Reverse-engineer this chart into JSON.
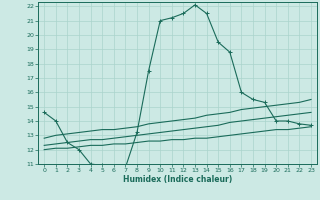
{
  "title": "",
  "xlabel": "Humidex (Indice chaleur)",
  "ylabel": "",
  "bg_color": "#cce9e4",
  "grid_color": "#aad4cc",
  "line_color": "#1a6b5a",
  "xlim": [
    -0.5,
    23.5
  ],
  "ylim": [
    11,
    22.3
  ],
  "yticks": [
    11,
    12,
    13,
    14,
    15,
    16,
    17,
    18,
    19,
    20,
    21,
    22
  ],
  "xticks": [
    0,
    1,
    2,
    3,
    4,
    5,
    6,
    7,
    8,
    9,
    10,
    11,
    12,
    13,
    14,
    15,
    16,
    17,
    18,
    19,
    20,
    21,
    22,
    23
  ],
  "curve1_x": [
    0,
    1,
    2,
    3,
    4,
    5,
    6,
    7,
    8,
    9,
    10,
    11,
    12,
    13,
    14,
    15,
    16,
    17,
    18,
    19,
    20,
    21,
    22,
    23
  ],
  "curve1_y": [
    14.6,
    14.0,
    12.5,
    12.0,
    11.0,
    10.9,
    10.75,
    10.75,
    13.2,
    17.5,
    21.0,
    21.2,
    21.5,
    22.1,
    21.5,
    19.5,
    18.8,
    16.0,
    15.5,
    15.3,
    14.0,
    14.0,
    13.8,
    13.7
  ],
  "curve2_x": [
    0,
    1,
    2,
    3,
    4,
    5,
    6,
    7,
    8,
    9,
    10,
    11,
    12,
    13,
    14,
    15,
    16,
    17,
    18,
    19,
    20,
    21,
    22,
    23
  ],
  "curve2_y": [
    12.8,
    13.0,
    13.1,
    13.2,
    13.3,
    13.4,
    13.4,
    13.5,
    13.6,
    13.8,
    13.9,
    14.0,
    14.1,
    14.2,
    14.4,
    14.5,
    14.6,
    14.8,
    14.9,
    15.0,
    15.1,
    15.2,
    15.3,
    15.5
  ],
  "curve3_x": [
    0,
    1,
    2,
    3,
    4,
    5,
    6,
    7,
    8,
    9,
    10,
    11,
    12,
    13,
    14,
    15,
    16,
    17,
    18,
    19,
    20,
    21,
    22,
    23
  ],
  "curve3_y": [
    12.3,
    12.4,
    12.5,
    12.6,
    12.7,
    12.7,
    12.8,
    12.9,
    13.0,
    13.1,
    13.2,
    13.3,
    13.4,
    13.5,
    13.6,
    13.7,
    13.9,
    14.0,
    14.1,
    14.2,
    14.3,
    14.4,
    14.5,
    14.6
  ],
  "curve4_x": [
    0,
    1,
    2,
    3,
    4,
    5,
    6,
    7,
    8,
    9,
    10,
    11,
    12,
    13,
    14,
    15,
    16,
    17,
    18,
    19,
    20,
    21,
    22,
    23
  ],
  "curve4_y": [
    12.0,
    12.1,
    12.1,
    12.2,
    12.3,
    12.3,
    12.4,
    12.4,
    12.5,
    12.6,
    12.6,
    12.7,
    12.7,
    12.8,
    12.8,
    12.9,
    13.0,
    13.1,
    13.2,
    13.3,
    13.4,
    13.4,
    13.5,
    13.6
  ]
}
